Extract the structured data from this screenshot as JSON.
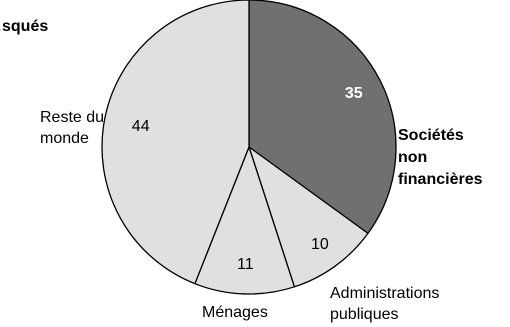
{
  "chart_data": {
    "type": "pie",
    "title": "…squés",
    "slices": [
      {
        "label": "Sociétés non financières",
        "label_lines": [
          "Sociétés",
          "non",
          "financières"
        ],
        "value": 35,
        "color": "#707070",
        "value_color": "#ffffff",
        "bold": true
      },
      {
        "label": "Administrations publiques",
        "label_lines": [
          "Administrations",
          "publiques"
        ],
        "value": 10,
        "color": "#e0e0e0",
        "value_color": "#000000",
        "bold": false
      },
      {
        "label": "Ménages",
        "label_lines": [
          "Ménages"
        ],
        "value": 11,
        "color": "#e0e0e0",
        "value_color": "#000000",
        "bold": false
      },
      {
        "label": "Reste du monde",
        "label_lines": [
          "Reste du",
          "monde"
        ],
        "value": 44,
        "color": "#e0e0e0",
        "value_color": "#000000",
        "bold": false
      }
    ],
    "start_angle": "12 o'clock",
    "direction": "clockwise",
    "legend": "none"
  }
}
